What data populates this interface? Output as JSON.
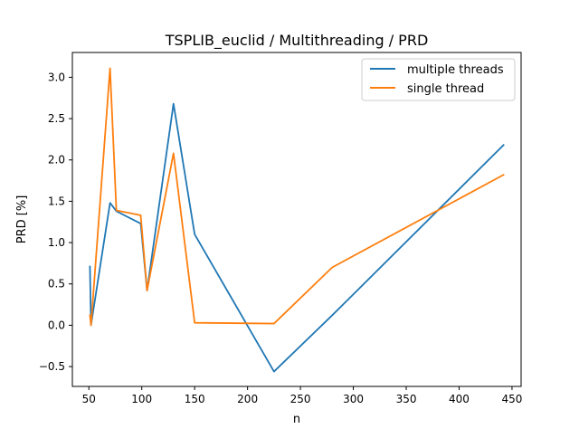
{
  "chart_data": {
    "type": "line",
    "title": "TSPLIB_euclid / Multithreading / PRD",
    "xlabel": "n",
    "ylabel": "PRD [%]",
    "xlim": [
      34.4,
      458.6
    ],
    "ylim": [
      -0.74,
      3.3
    ],
    "xticks": [
      50,
      100,
      150,
      200,
      250,
      300,
      350,
      400,
      450
    ],
    "yticks": [
      -0.5,
      0.0,
      0.5,
      1.0,
      1.5,
      2.0,
      2.5,
      3.0
    ],
    "xtick_labels": [
      "50",
      "100",
      "150",
      "200",
      "250",
      "300",
      "350",
      "400",
      "450"
    ],
    "ytick_labels": [
      "−0.5",
      "0.0",
      "0.5",
      "1.0",
      "1.5",
      "2.0",
      "2.5",
      "3.0"
    ],
    "grid": false,
    "legend_position": "upper right",
    "series": [
      {
        "name": "multiple threads",
        "color": "#1f77b4",
        "x": [
          51,
          52,
          70,
          76,
          99,
          105,
          130,
          150,
          225,
          280,
          442
        ],
        "y": [
          0.71,
          0.0,
          1.48,
          1.38,
          1.23,
          0.42,
          2.68,
          1.1,
          -0.56,
          0.12,
          2.18
        ]
      },
      {
        "name": "single thread",
        "color": "#ff7f0e",
        "x": [
          51,
          52,
          70,
          76,
          99,
          105,
          130,
          150,
          225,
          280,
          442
        ],
        "y": [
          0.12,
          0.0,
          3.11,
          1.39,
          1.33,
          0.42,
          2.08,
          0.03,
          0.02,
          0.7,
          1.82
        ]
      }
    ]
  }
}
